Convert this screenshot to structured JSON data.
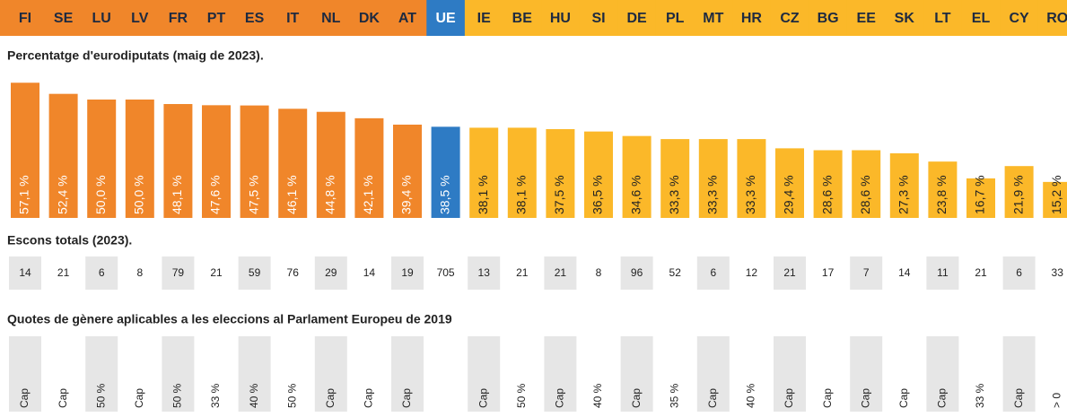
{
  "chart_data": {
    "type": "bar",
    "title": "Percentatge d'eurodiputats (maig de 2023).",
    "categories": [
      "FI",
      "SE",
      "LU",
      "LV",
      "FR",
      "PT",
      "ES",
      "IT",
      "NL",
      "DK",
      "AT",
      "UE",
      "IE",
      "BE",
      "HU",
      "SI",
      "DE",
      "PL",
      "MT",
      "HR",
      "CZ",
      "BG",
      "EE",
      "SK",
      "LT",
      "EL",
      "CY",
      "RO"
    ],
    "values": [
      57.1,
      52.4,
      50.0,
      50.0,
      48.1,
      47.6,
      47.5,
      46.1,
      44.8,
      42.1,
      39.4,
      38.5,
      38.1,
      38.1,
      37.5,
      36.5,
      34.6,
      33.3,
      33.3,
      33.3,
      29.4,
      28.6,
      28.6,
      27.3,
      23.8,
      16.7,
      21.9,
      15.2
    ],
    "value_labels": [
      "57,1 %",
      "52,4 %",
      "50,0 %",
      "50,0 %",
      "48,1 %",
      "47,6 %",
      "47,5 %",
      "46,1 %",
      "44,8 %",
      "42,1 %",
      "39,4 %",
      "38,5 %",
      "38,1 %",
      "38,1 %",
      "37,5 %",
      "36,5 %",
      "34,6 %",
      "33,3 %",
      "33,3 %",
      "33,3 %",
      "29,4 %",
      "28,6 %",
      "28,6 %",
      "27,3 %",
      "23,8 %",
      "16,7 %",
      "21,9 %",
      "15,2 %"
    ],
    "colors": [
      "#f0862a",
      "#f0862a",
      "#f0862a",
      "#f0862a",
      "#f0862a",
      "#f0862a",
      "#f0862a",
      "#f0862a",
      "#f0862a",
      "#f0862a",
      "#f0862a",
      "#2e7bc4",
      "#fbb829",
      "#fbb829",
      "#fbb829",
      "#fbb829",
      "#fbb829",
      "#fbb829",
      "#fbb829",
      "#fbb829",
      "#fbb829",
      "#fbb829",
      "#fbb829",
      "#fbb829",
      "#fbb829",
      "#fbb829",
      "#fbb829",
      "#fbb829"
    ],
    "seats_title": "Escons totals (2023).",
    "seats": [
      14,
      21,
      6,
      8,
      79,
      21,
      59,
      76,
      29,
      14,
      19,
      705,
      13,
      21,
      21,
      8,
      96,
      52,
      6,
      12,
      21,
      17,
      7,
      14,
      11,
      21,
      6,
      33
    ],
    "quotas_title": "Quotes de gènere aplicables a les eleccions al Parlament Europeu de 2019",
    "quotas": [
      "Cap",
      "Cap",
      "50 %",
      "Cap",
      "50 %",
      "33 %",
      "40 %",
      "50 %",
      "Cap",
      "Cap",
      "Cap",
      null,
      "Cap",
      "50 %",
      "Cap",
      "40 %",
      "Cap",
      "35 %",
      "Cap",
      "40 %",
      "Cap",
      "Cap",
      "Cap",
      "Cap",
      "Cap",
      "33 %",
      "Cap",
      "> 0"
    ]
  }
}
